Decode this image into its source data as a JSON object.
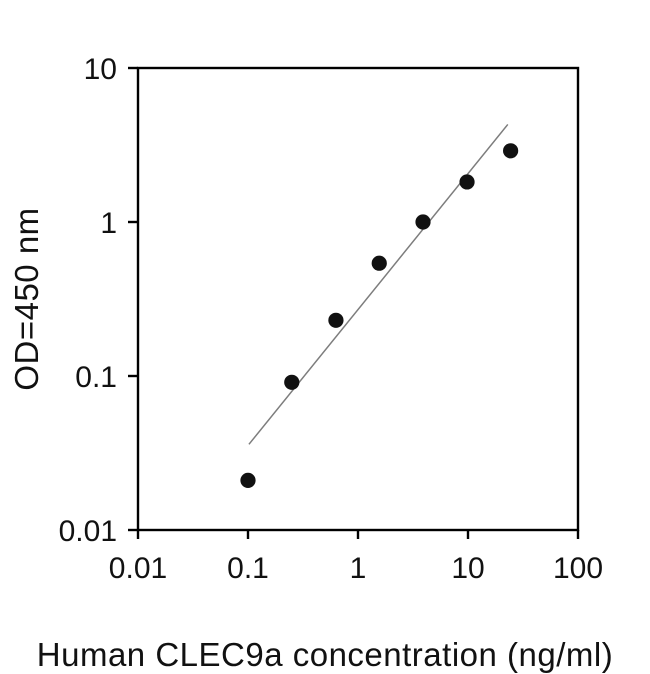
{
  "figure": {
    "background": "#ffffff",
    "text_color": "#111111"
  },
  "chart_data": {
    "type": "scatter",
    "title": "",
    "xlabel": "Human CLEC9a concentration (ng/ml)",
    "ylabel": "OD=450 nm",
    "x_scale": "log",
    "y_scale": "log",
    "xlim": [
      0.01,
      100
    ],
    "ylim": [
      0.01,
      10
    ],
    "x_ticks": [
      0.01,
      0.1,
      1,
      10,
      100
    ],
    "x_tick_labels": [
      "0.01",
      "0.1",
      "1",
      "10",
      "100"
    ],
    "y_ticks": [
      10,
      1,
      0.1,
      0.01
    ],
    "y_tick_labels": [
      "10",
      "1",
      "0.1",
      "0.01"
    ],
    "grid": false,
    "legend": "none",
    "axis_color": "#000000",
    "series": [
      {
        "name": "standard-curve-points",
        "type": "scatter",
        "marker": "circle",
        "marker_color": "#111111",
        "points": [
          {
            "x": 0.1,
            "y": 0.021
          },
          {
            "x": 0.25,
            "y": 0.091
          },
          {
            "x": 0.63,
            "y": 0.23
          },
          {
            "x": 1.56,
            "y": 0.54
          },
          {
            "x": 3.9,
            "y": 1.0
          },
          {
            "x": 9.8,
            "y": 1.82
          },
          {
            "x": 24.4,
            "y": 2.9
          }
        ]
      },
      {
        "name": "regression-line",
        "type": "line",
        "line_color": "#7d7d7d",
        "points": [
          {
            "x": 0.102,
            "y": 0.036
          },
          {
            "x": 23.0,
            "y": 4.3
          }
        ]
      }
    ]
  }
}
